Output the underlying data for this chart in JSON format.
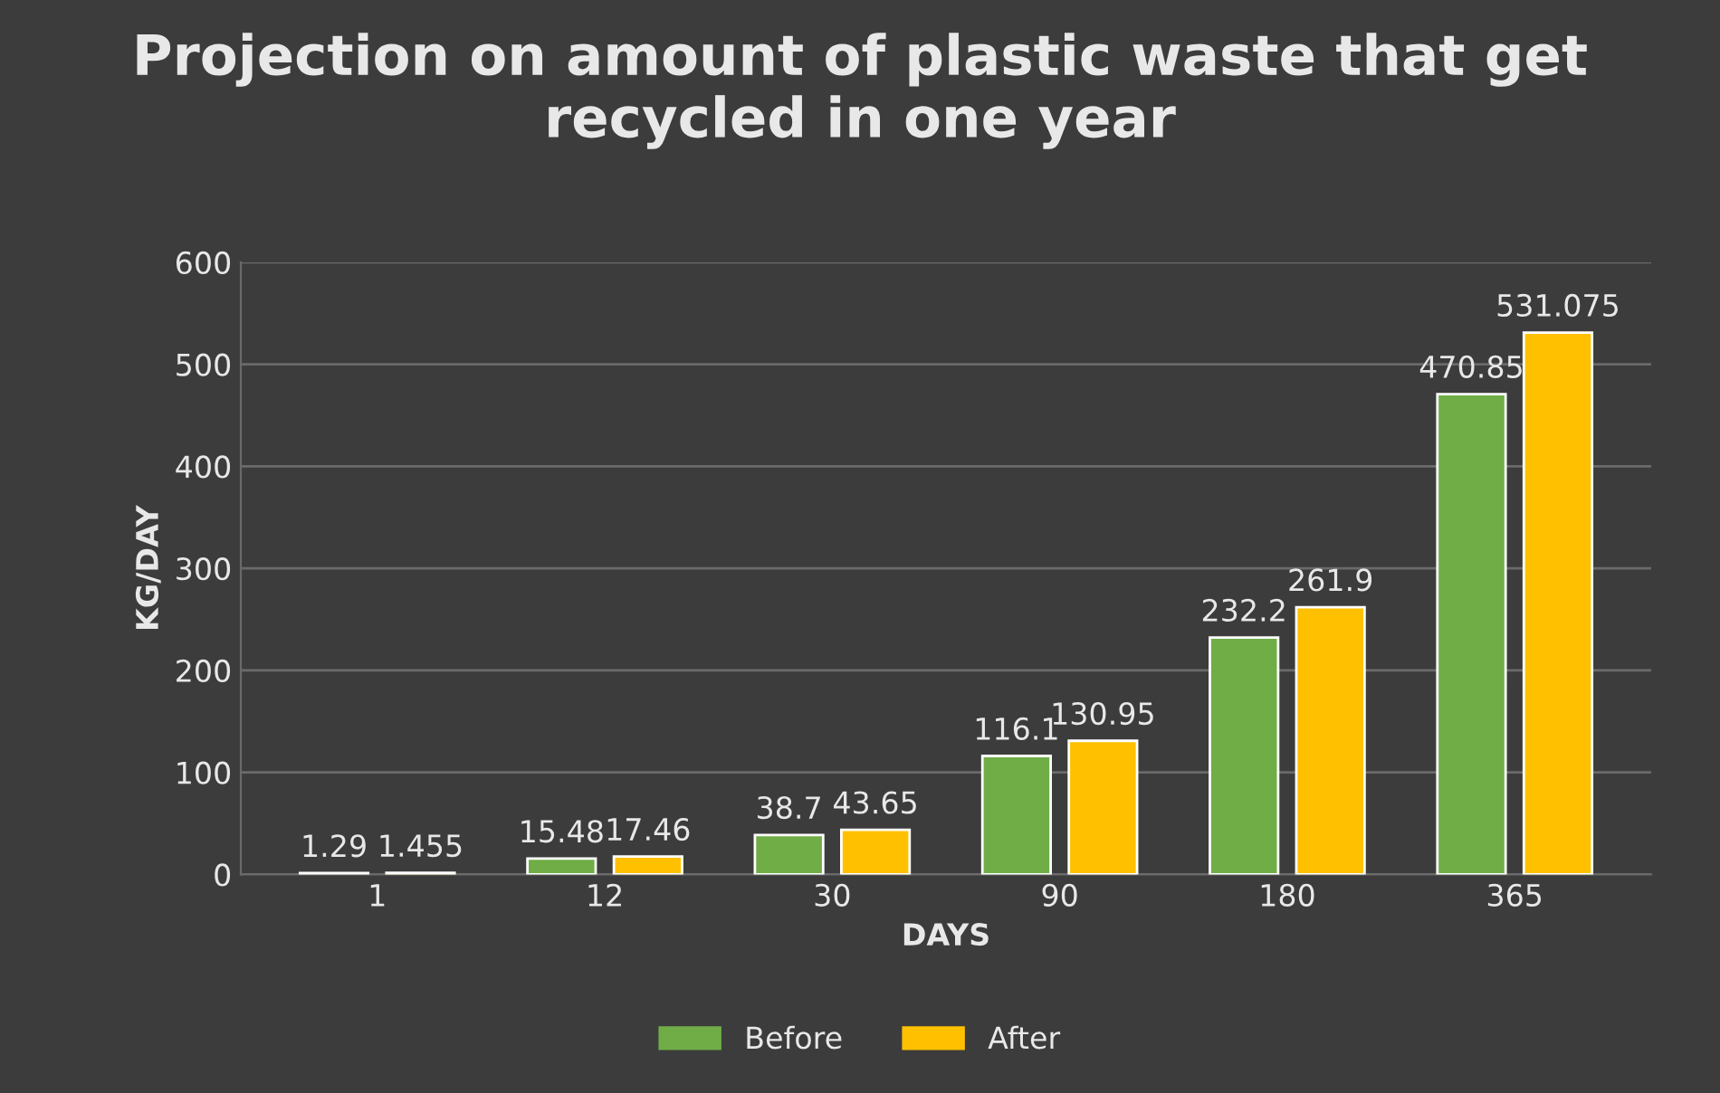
{
  "chart_data": {
    "type": "bar",
    "title": "Projection on amount of plastic waste that get recycled in one year",
    "xlabel": "DAYS",
    "ylabel": "KG/DAY",
    "categories": [
      "1",
      "12",
      "30",
      "90",
      "180",
      "365"
    ],
    "series": [
      {
        "name": "Before",
        "color": "#70ad47",
        "values": [
          1.29,
          15.48,
          38.7,
          116.1,
          232.2,
          470.85
        ]
      },
      {
        "name": "After",
        "color": "#ffc000",
        "values": [
          1.455,
          17.46,
          43.65,
          130.95,
          261.9,
          531.075
        ]
      }
    ],
    "ylim": [
      0,
      600
    ],
    "yticks": [
      0,
      100,
      200,
      300,
      400,
      500,
      600
    ],
    "grid": "y",
    "legend": "bottom",
    "data_labels": true
  }
}
